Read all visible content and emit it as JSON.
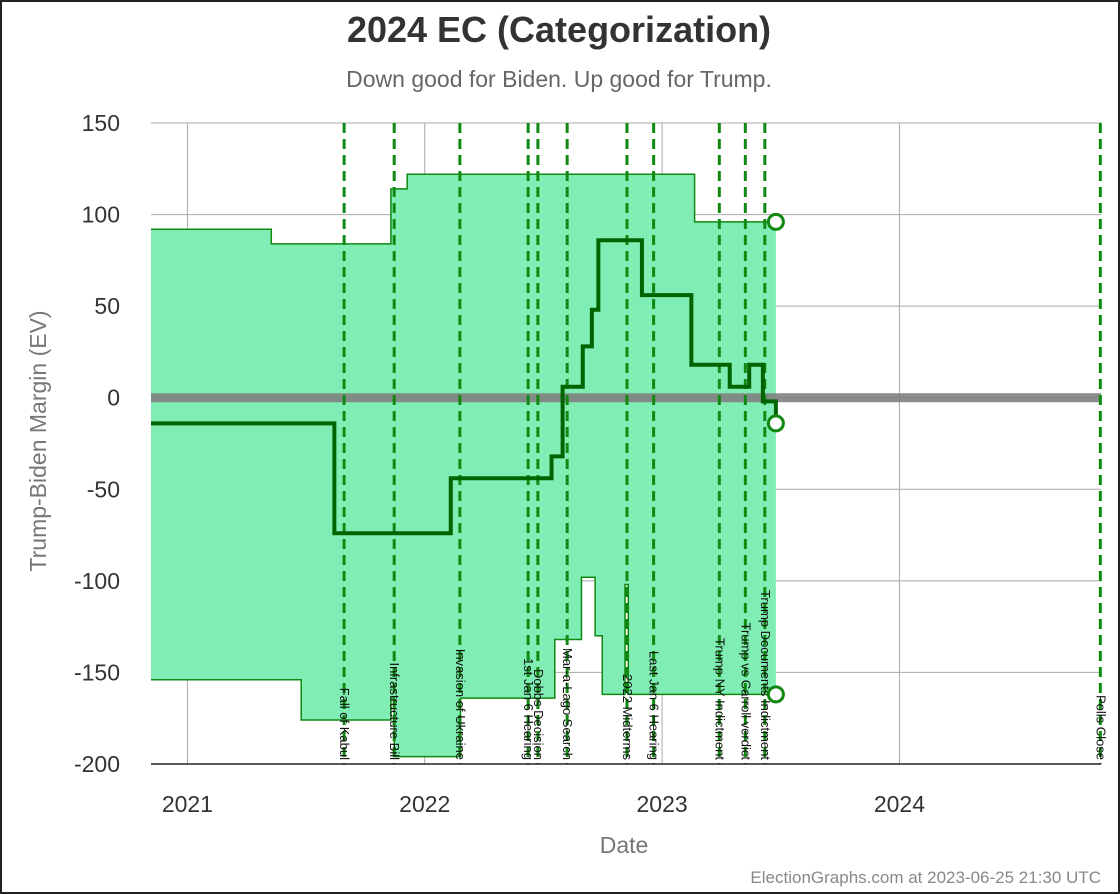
{
  "chart_data": {
    "type": "line",
    "title": "2024 EC (Categorization)",
    "subtitle": "Down good for Biden. Up good for Trump.",
    "xlabel": "Date",
    "ylabel": "Trump-Biden Margin (EV)",
    "xlim": [
      "2020-11-06",
      "2024-11-06"
    ],
    "ylim": [
      -200,
      150
    ],
    "yticks": [
      150,
      100,
      50,
      0,
      -50,
      -100,
      -150,
      -200
    ],
    "xticks": [
      {
        "date": "2021-01-01",
        "label": "2021"
      },
      {
        "date": "2022-01-01",
        "label": "2022"
      },
      {
        "date": "2023-01-01",
        "label": "2023"
      },
      {
        "date": "2024-01-01",
        "label": "2024"
      }
    ],
    "grid": true,
    "colors": {
      "band_fill": "#80eeb4",
      "band_edge": "#118811",
      "center_line": "#006400",
      "event_line": "#118811",
      "zero_line": "#808080"
    },
    "band_upper": [
      [
        "2020-11-06",
        92
      ],
      [
        "2021-05-10",
        84
      ],
      [
        "2021-11-10",
        114
      ],
      [
        "2021-12-05",
        122
      ],
      [
        "2023-02-20",
        96
      ],
      [
        "2023-06-25",
        96
      ]
    ],
    "band_lower": [
      [
        "2020-11-06",
        -154
      ],
      [
        "2021-06-25",
        -176
      ],
      [
        "2021-11-10",
        -164
      ],
      [
        "2021-11-15",
        -196
      ],
      [
        "2022-02-25",
        -164
      ],
      [
        "2022-07-20",
        -132
      ],
      [
        "2022-08-30",
        -98
      ],
      [
        "2022-09-20",
        -130
      ],
      [
        "2022-10-01",
        -162
      ],
      [
        "2022-11-05",
        -102
      ],
      [
        "2022-11-10",
        -162
      ],
      [
        "2023-06-25",
        -162
      ]
    ],
    "center_line": [
      [
        "2020-11-06",
        -14
      ],
      [
        "2021-08-15",
        -74
      ],
      [
        "2022-02-10",
        -44
      ],
      [
        "2022-07-15",
        -32
      ],
      [
        "2022-08-01",
        6
      ],
      [
        "2022-09-01",
        28
      ],
      [
        "2022-09-15",
        48
      ],
      [
        "2022-09-25",
        86
      ],
      [
        "2022-12-01",
        56
      ],
      [
        "2023-02-15",
        18
      ],
      [
        "2023-04-15",
        6
      ],
      [
        "2023-05-15",
        18
      ],
      [
        "2023-06-05",
        -2
      ],
      [
        "2023-06-25",
        -14
      ]
    ],
    "endpoints": [
      {
        "date": "2023-06-25",
        "value": 96
      },
      {
        "date": "2023-06-25",
        "value": -14
      },
      {
        "date": "2023-06-25",
        "value": -162
      }
    ],
    "events": [
      {
        "date": "2021-08-30",
        "label": "Fall of Kabul"
      },
      {
        "date": "2021-11-15",
        "label": "Infrastructure Bill"
      },
      {
        "date": "2022-02-24",
        "label": "Invasion of Ukraine"
      },
      {
        "date": "2022-06-09",
        "label": "1st Jan 6 Hearing"
      },
      {
        "date": "2022-06-24",
        "label": "Dobbs Decision"
      },
      {
        "date": "2022-08-08",
        "label": "Mar-a-Lago Search"
      },
      {
        "date": "2022-11-08",
        "label": "2022 Midterms"
      },
      {
        "date": "2022-12-19",
        "label": "Last Jan 6 Hearing"
      },
      {
        "date": "2023-03-30",
        "label": "Trump NY Indictment"
      },
      {
        "date": "2023-05-09",
        "label": "Trump vs Carroll verdict"
      },
      {
        "date": "2023-06-08",
        "label": "Trump Documents Indictment"
      },
      {
        "date": "2024-11-05",
        "label": "Polls Close"
      }
    ]
  },
  "credit": "ElectionGraphs.com at 2023-06-25 21:30 UTC"
}
